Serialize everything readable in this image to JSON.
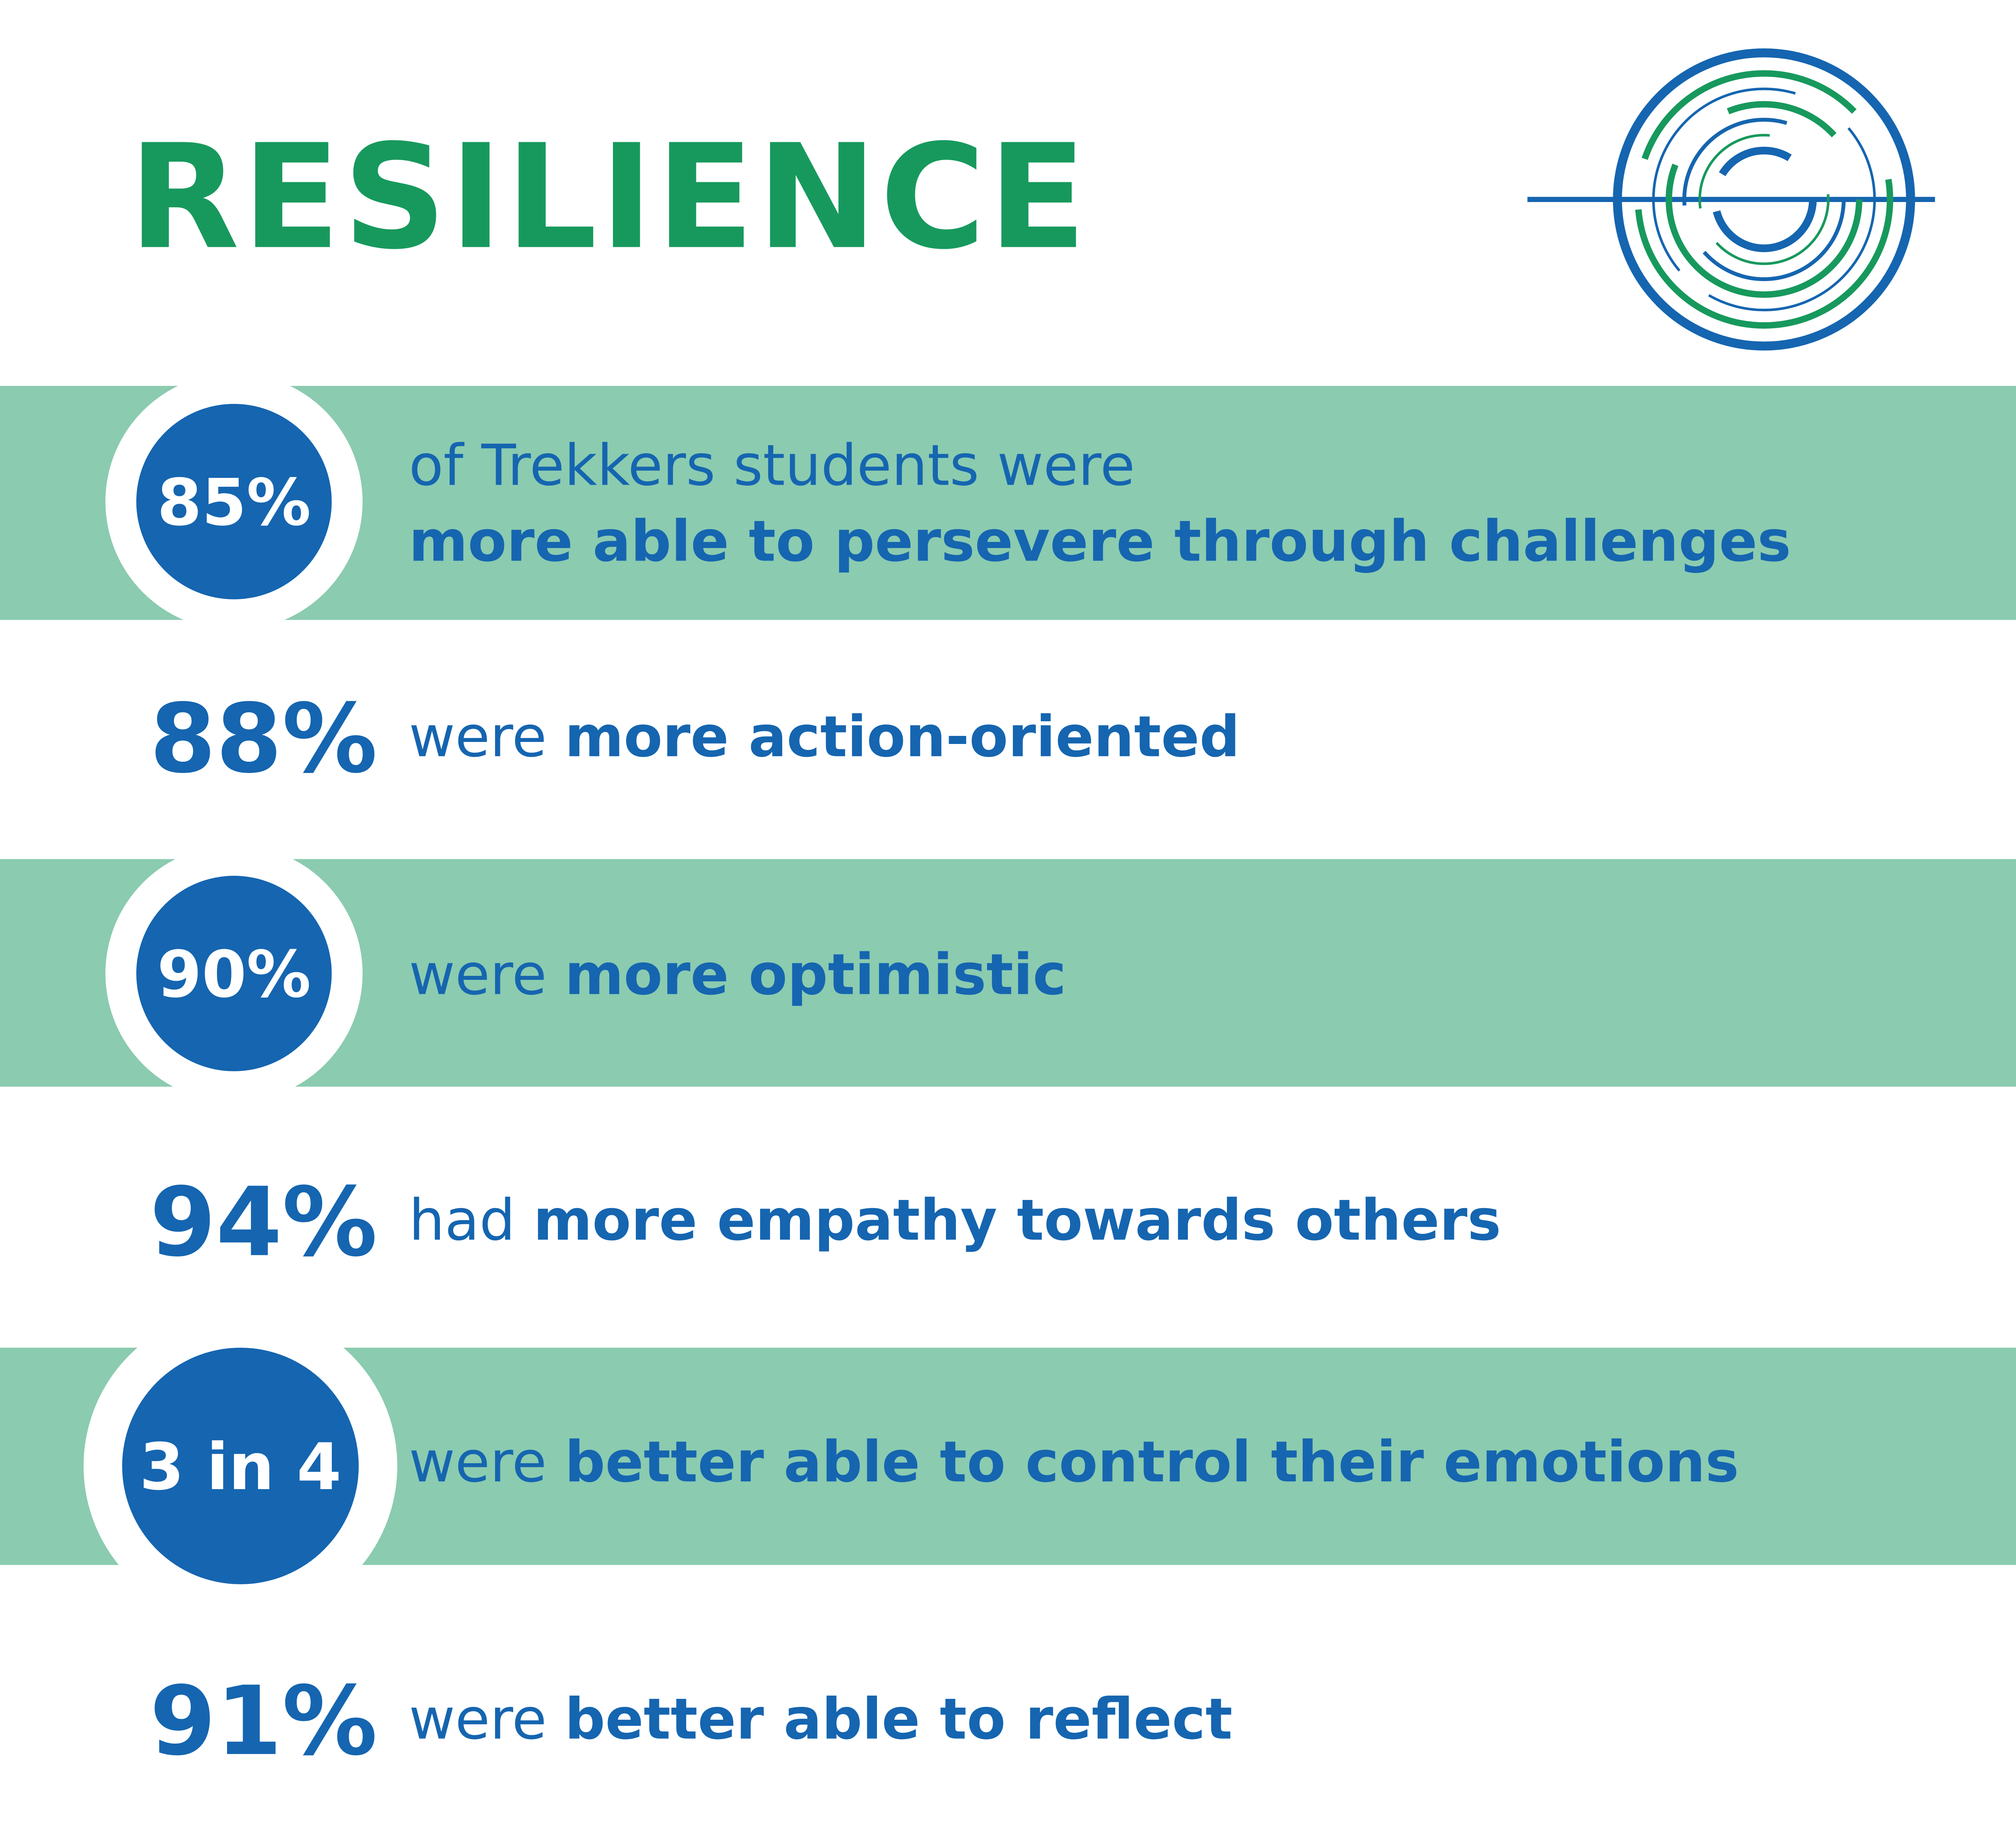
{
  "title": "RESILIENCE",
  "items": [
    {
      "stat": "85%",
      "lead": "of Trekkers students were",
      "emphasis": "more able to persevere through challenges"
    },
    {
      "stat": "88%",
      "lead": "were",
      "emphasis": "more action-oriented"
    },
    {
      "stat": "90%",
      "lead": "were",
      "emphasis": "more optimistic"
    },
    {
      "stat": "94%",
      "lead": "had",
      "emphasis": "more empathy towards others"
    },
    {
      "stat": "3 in 4",
      "lead": "were",
      "emphasis": "better able to control their emotions"
    },
    {
      "stat": "91%",
      "lead": "were",
      "emphasis": "better able to reflect"
    }
  ]
}
